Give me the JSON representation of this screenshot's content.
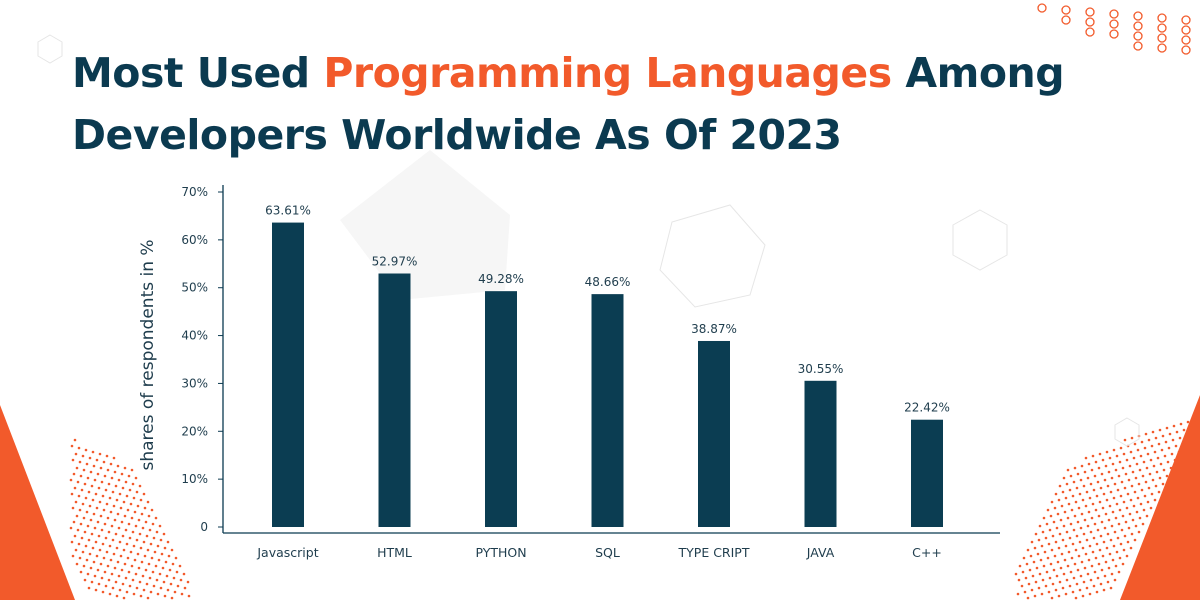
{
  "title": {
    "part1": "Most Used ",
    "highlight": "Programming Languages",
    "part2": " Among",
    "line2": "Developers Worldwide As Of 2023"
  },
  "colors": {
    "bar": "#0b3d52",
    "accent": "#f25a2b",
    "title": "#0b3a50"
  },
  "chart_data": {
    "type": "bar",
    "categories": [
      "Javascript",
      "HTML",
      "PYTHON",
      "SQL",
      "TYPE CRIPT",
      "JAVA",
      "C++"
    ],
    "values": [
      63.61,
      52.97,
      49.28,
      48.66,
      38.87,
      30.55,
      22.42
    ],
    "data_labels": [
      "63.61%",
      "52.97%",
      "49.28%",
      "48.66%",
      "38.87%",
      "30.55%",
      "22.42%"
    ],
    "ylabel": "shares of respondents in %",
    "xlabel": "",
    "ylim": [
      0,
      70
    ],
    "yticks": [
      "0",
      "10%",
      "20%",
      "30%",
      "40%",
      "50%",
      "60%",
      "70%"
    ],
    "grid": false,
    "legend": "none"
  }
}
